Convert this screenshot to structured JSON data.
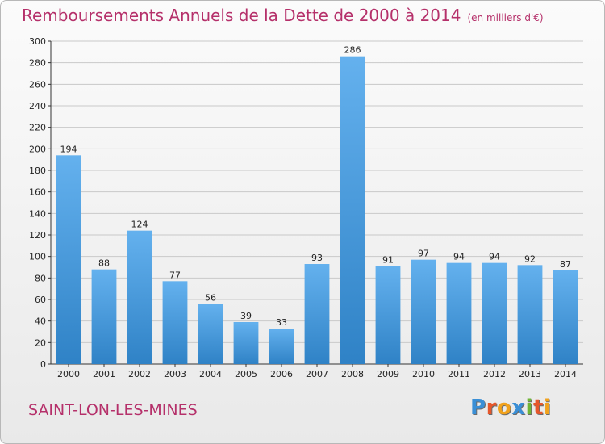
{
  "header": {
    "title": "Remboursements Annuels de la Dette de 2000 à 2014",
    "unit": "(en milliers d'€)"
  },
  "footer": {
    "city": "SAINT-LON-LES-MINES",
    "logo": [
      "P",
      "r",
      "o",
      "x",
      "i",
      "t",
      "i"
    ],
    "logo_colors": [
      "#3a8fd6",
      "#e6572b",
      "#f1a21d",
      "#3a8fd6",
      "#6fb536",
      "#e6572b",
      "#f1a21d"
    ]
  },
  "colors": {
    "bar_light": "#64b1ee",
    "bar_dark": "#2f82c6",
    "title": "#b5306a",
    "grid": "#c9c9c9"
  },
  "chart_data": {
    "type": "bar",
    "title": "Remboursements Annuels de la Dette de 2000 à 2014",
    "subtitle": "(en milliers d'€)",
    "xlabel": "",
    "ylabel": "",
    "categories": [
      "2000",
      "2001",
      "2002",
      "2003",
      "2004",
      "2005",
      "2006",
      "2007",
      "2008",
      "2009",
      "2010",
      "2011",
      "2012",
      "2013",
      "2014"
    ],
    "values": [
      194,
      88,
      124,
      77,
      56,
      39,
      33,
      93,
      286,
      91,
      97,
      94,
      94,
      92,
      87
    ],
    "ylim": [
      0,
      300
    ],
    "yticks": [
      0,
      20,
      40,
      60,
      80,
      100,
      120,
      140,
      160,
      180,
      200,
      220,
      240,
      260,
      280,
      300
    ],
    "grid": true,
    "legend": "none"
  }
}
